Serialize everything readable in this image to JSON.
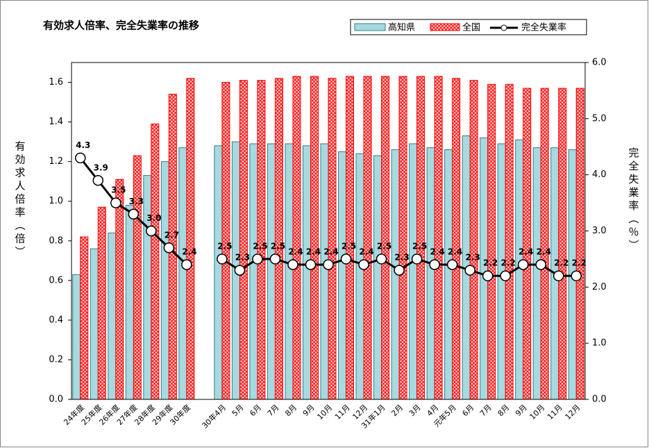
{
  "chart_data": {
    "type": "bar_line",
    "title": "有効求人倍率、完全失業率の推移",
    "ylabel": "有効求人倍率（倍）",
    "y2label": "完全失業率（％）",
    "categories": [
      "24年度",
      "25年度",
      "26年度",
      "27年度",
      "28年度",
      "29年度",
      "30年度",
      null,
      "30年4月",
      "5月",
      "6月",
      "7月",
      "8月",
      "9月",
      "10月",
      "11月",
      "12月",
      "31年1月",
      "2月",
      "3月",
      "4月",
      "元年5月",
      "6月",
      "7月",
      "8月",
      "9月",
      "10月",
      "11月",
      "12月"
    ],
    "series": [
      {
        "name": "高知県",
        "color": "#a6d9e0",
        "values": [
          0.63,
          0.76,
          0.84,
          0.98,
          1.13,
          1.2,
          1.27,
          null,
          1.28,
          1.3,
          1.29,
          1.29,
          1.29,
          1.28,
          1.29,
          1.25,
          1.24,
          1.23,
          1.26,
          1.29,
          1.27,
          1.26,
          1.33,
          1.32,
          1.29,
          1.31,
          1.27,
          1.27,
          1.26
        ]
      },
      {
        "name": "全国",
        "color": "#ff0000",
        "values": [
          0.82,
          0.97,
          1.11,
          1.23,
          1.39,
          1.54,
          1.62,
          null,
          1.6,
          1.61,
          1.61,
          1.62,
          1.63,
          1.63,
          1.62,
          1.63,
          1.63,
          1.63,
          1.63,
          1.63,
          1.63,
          1.62,
          1.61,
          1.59,
          1.59,
          1.57,
          1.57,
          1.57,
          1.57
        ]
      },
      {
        "name": "完全失業率",
        "color": "#000000",
        "axis": "y2",
        "values": [
          4.3,
          3.9,
          3.5,
          3.3,
          3.0,
          2.7,
          2.4,
          null,
          2.5,
          2.3,
          2.5,
          2.5,
          2.4,
          2.4,
          2.4,
          2.5,
          2.4,
          2.5,
          2.3,
          2.5,
          2.4,
          2.4,
          2.3,
          2.2,
          2.2,
          2.4,
          2.4,
          2.2,
          2.2
        ],
        "value_labels": [
          "4.3",
          "3.9",
          "3.5",
          "3.3",
          "3.0",
          "2.7",
          "2.4",
          null,
          "2.5",
          "2.3",
          "2.5",
          "2.5",
          "2.4",
          "2.4",
          "2.4",
          "2.5",
          "2.4",
          "2.5",
          "2.3",
          "2.5",
          "2.4",
          "2.4",
          "2.3",
          "2.2",
          "2.2",
          "2.4",
          "2.4",
          "2.2",
          "2.2"
        ]
      }
    ],
    "ylim": [
      0,
      1.7
    ],
    "yticks": [
      {
        "value": 0,
        "label": "0.0"
      },
      0.2,
      0.4,
      0.6,
      0.8,
      {
        "value": 1,
        "label": "1.0"
      },
      1.2,
      1.4,
      1.6
    ],
    "y2lim": [
      0,
      6
    ],
    "y2ticks": [
      {
        "value": 0,
        "label": "0.0"
      },
      {
        "value": 1,
        "label": "1.0"
      },
      {
        "value": 2,
        "label": "2.0"
      },
      {
        "value": 3,
        "label": "3.0"
      },
      {
        "value": 4,
        "label": "4.0"
      },
      {
        "value": 5,
        "label": "5.0"
      },
      {
        "value": 6,
        "label": "6.0"
      }
    ],
    "legend": "upper right"
  }
}
